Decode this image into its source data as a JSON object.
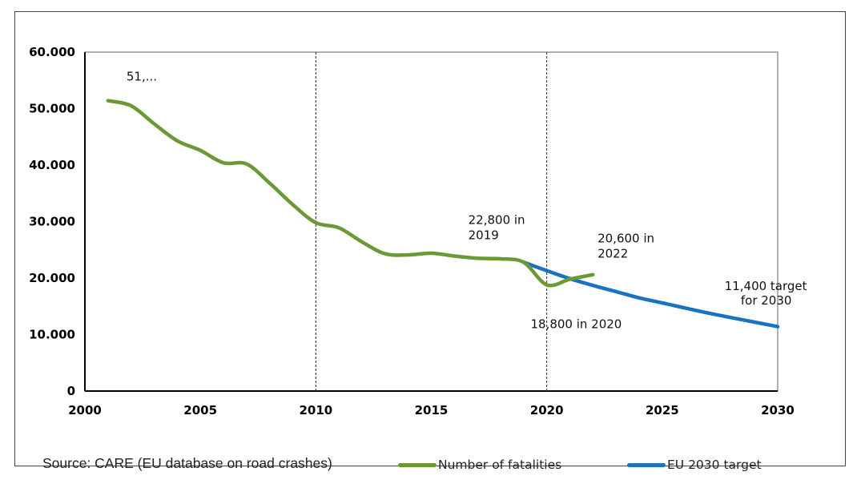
{
  "chart_data": {
    "type": "line",
    "xlim": [
      2000,
      2030
    ],
    "ylim": [
      0,
      60000
    ],
    "x_ticks": [
      "2000",
      "2005",
      "2010",
      "2015",
      "2020",
      "2025",
      "2030"
    ],
    "y_ticks": [
      "0",
      "10.000",
      "20.000",
      "30.000",
      "40.000",
      "50.000",
      "60.000"
    ],
    "grid": false,
    "vlines": [
      2010,
      2020
    ],
    "series": [
      {
        "name": "Number of fatalities",
        "color": "#6b9a34",
        "x": [
          2001,
          2002,
          2003,
          2004,
          2005,
          2006,
          2007,
          2008,
          2009,
          2010,
          2011,
          2012,
          2013,
          2014,
          2015,
          2016,
          2017,
          2018,
          2019,
          2020,
          2021,
          2022
        ],
        "y": [
          51400,
          50500,
          47300,
          44300,
          42600,
          40400,
          40200,
          36800,
          33000,
          29800,
          28900,
          26400,
          24300,
          24100,
          24400,
          23900,
          23500,
          23400,
          22800,
          18800,
          19800,
          20600
        ]
      },
      {
        "name": "EU 2030 target",
        "color": "#1a73c1",
        "x": [
          2019,
          2020,
          2021,
          2022,
          2023,
          2024,
          2025,
          2026,
          2027,
          2028,
          2029,
          2030
        ],
        "y": [
          22800,
          21300,
          19900,
          18700,
          17600,
          16500,
          15600,
          14700,
          13800,
          13000,
          12200,
          11400
        ]
      }
    ],
    "annotations": [
      {
        "text": "51,...",
        "x": 2001.8,
        "y": 55000
      },
      {
        "text": "22,800 in",
        "x": 2016.6,
        "y": 29600
      },
      {
        "text": "2019",
        "x": 2016.6,
        "y": 26900
      },
      {
        "text": "20,600 in",
        "x": 2022.2,
        "y": 26300
      },
      {
        "text": "2022",
        "x": 2022.2,
        "y": 23600
      },
      {
        "text": "18,800 in 2020",
        "x": 2019.3,
        "y": 11100
      },
      {
        "text": "11,400 target",
        "x": 2027.7,
        "y": 17900
      },
      {
        "text": "for 2030",
        "x": 2028.4,
        "y": 15300
      }
    ]
  },
  "footer": {
    "source": "Source: CARE (EU database on road crashes)"
  }
}
